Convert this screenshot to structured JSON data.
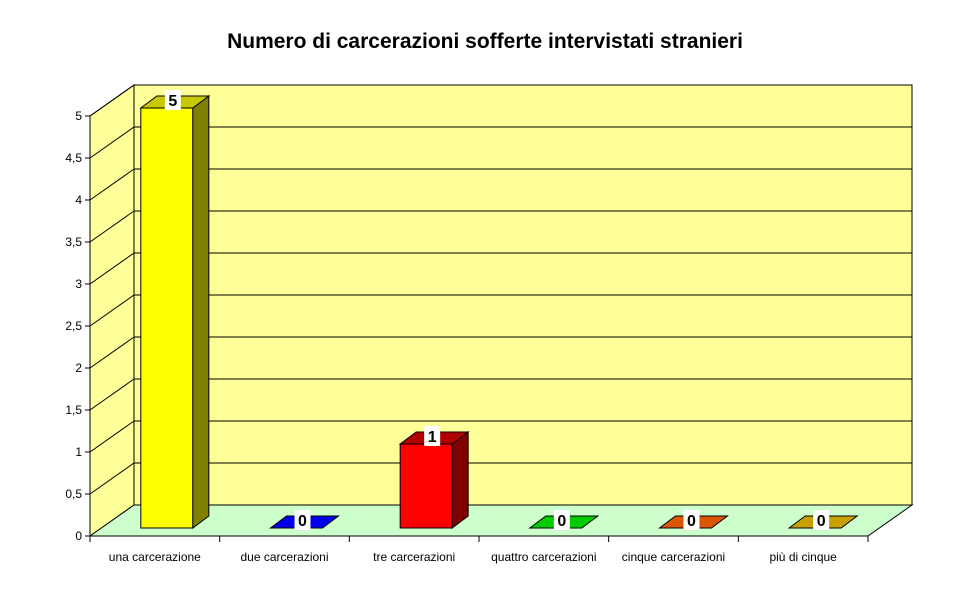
{
  "chart_data": {
    "type": "bar",
    "title": "Numero di carcerazioni sofferte intervistati stranieri",
    "xlabel": "",
    "ylabel": "",
    "categories": [
      "una carcerazione",
      "due carcerazioni",
      "tre carcerazioni",
      "quattro carcerazioni",
      "cinque carcerazioni",
      "più di cinque"
    ],
    "values": [
      5,
      0,
      1,
      0,
      0,
      0
    ],
    "data_labels": [
      "5",
      "0",
      "1",
      "0",
      "0",
      "0"
    ],
    "ylim": [
      0,
      5
    ],
    "yticks": [
      "0",
      "0,5",
      "1",
      "1,5",
      "2",
      "2,5",
      "3",
      "3,5",
      "4",
      "4,5",
      "5"
    ],
    "grid": true,
    "legend": "none",
    "colors": {
      "wall": "#ffff99",
      "floor": "#ccffcc",
      "bars": [
        {
          "front": "#ffff00",
          "top": "#c8c800",
          "side": "#808000"
        },
        {
          "front": "#0000ee",
          "top": "#0000ee",
          "side": "#000080"
        },
        {
          "front": "#ff0000",
          "top": "#b00000",
          "side": "#800000"
        },
        {
          "front": "#00cc00",
          "top": "#00cc00",
          "side": "#006600"
        },
        {
          "front": "#dd5500",
          "top": "#dd5500",
          "side": "#803000"
        },
        {
          "front": "#c8a000",
          "top": "#c8a000",
          "side": "#806000"
        }
      ]
    }
  }
}
